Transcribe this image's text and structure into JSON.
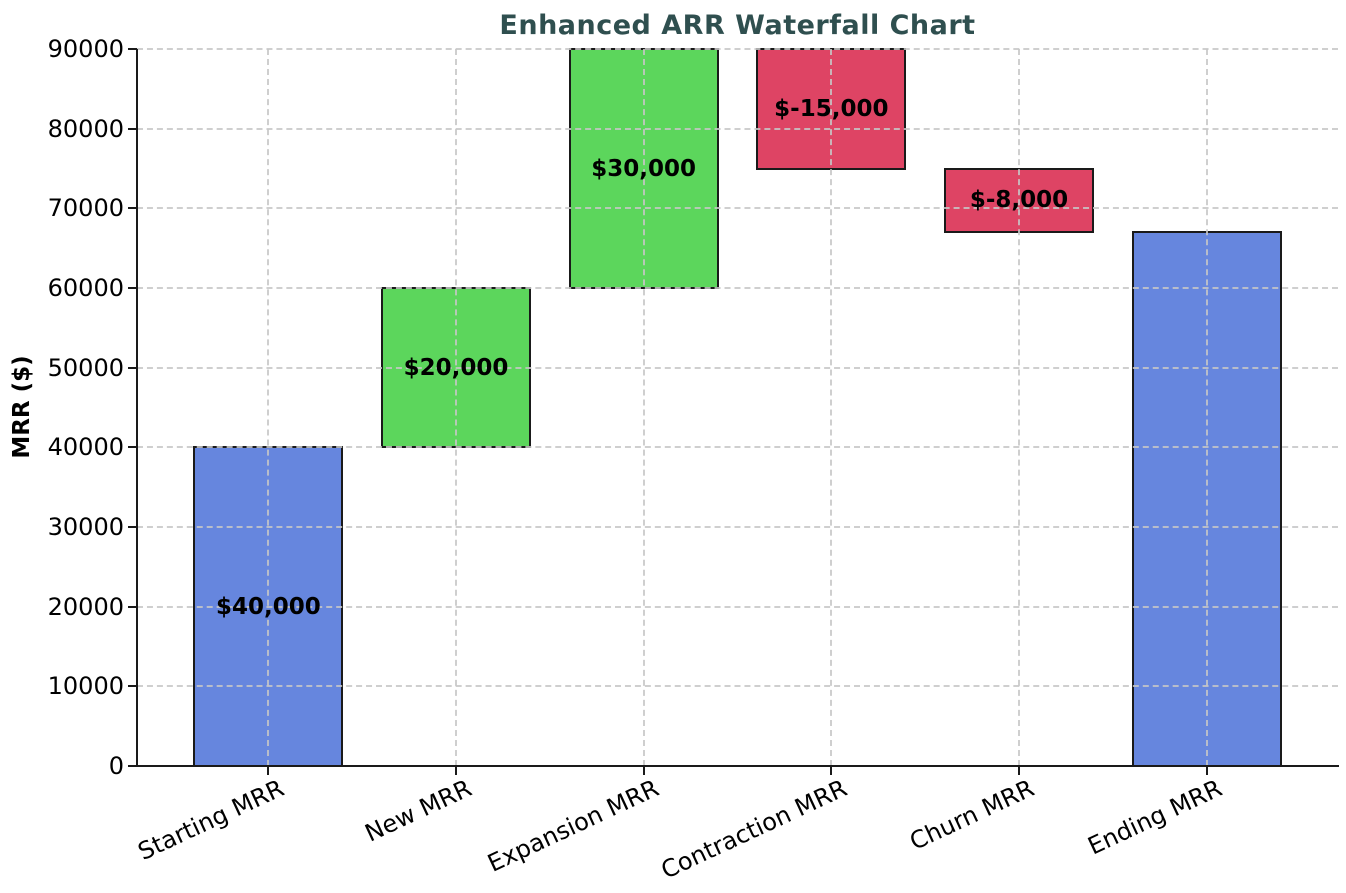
{
  "chart_data": {
    "type": "bar",
    "subtype": "waterfall",
    "title": "Enhanced ARR Waterfall Chart",
    "xlabel": "",
    "ylabel": "MRR ($)",
    "categories": [
      "Starting MRR",
      "New MRR",
      "Expansion MRR",
      "Contraction MRR",
      "Churn MRR",
      "Ending MRR"
    ],
    "bars": [
      {
        "category": "Starting MRR",
        "start": 0,
        "end": 40000,
        "value": 40000,
        "role": "total",
        "label": "$40,000"
      },
      {
        "category": "New MRR",
        "start": 40000,
        "end": 60000,
        "value": 20000,
        "role": "increase",
        "label": "$20,000"
      },
      {
        "category": "Expansion MRR",
        "start": 60000,
        "end": 90000,
        "value": 30000,
        "role": "increase",
        "label": "$30,000"
      },
      {
        "category": "Contraction MRR",
        "start": 90000,
        "end": 75000,
        "value": -15000,
        "role": "decrease",
        "label": "$-15,000"
      },
      {
        "category": "Churn MRR",
        "start": 75000,
        "end": 67000,
        "value": -8000,
        "role": "decrease",
        "label": "$-8,000"
      },
      {
        "category": "Ending MRR",
        "start": 0,
        "end": 67000,
        "value": 67000,
        "role": "total",
        "label": ""
      }
    ],
    "yticks": [
      0,
      10000,
      20000,
      30000,
      40000,
      50000,
      60000,
      70000,
      80000,
      90000
    ],
    "ylim": [
      0,
      90000
    ],
    "bar_width_fraction": 0.8,
    "grid": {
      "visible": true,
      "style": "dashed",
      "axes": "both",
      "color": "#c7c7c7"
    },
    "legend": null,
    "colors": {
      "total": "#6686DE",
      "increase": "#5CD65C",
      "decrease": "#DE4464",
      "edge": "#1a1a1a",
      "title": "#2F4F4F",
      "tick_text": "#000000"
    }
  }
}
